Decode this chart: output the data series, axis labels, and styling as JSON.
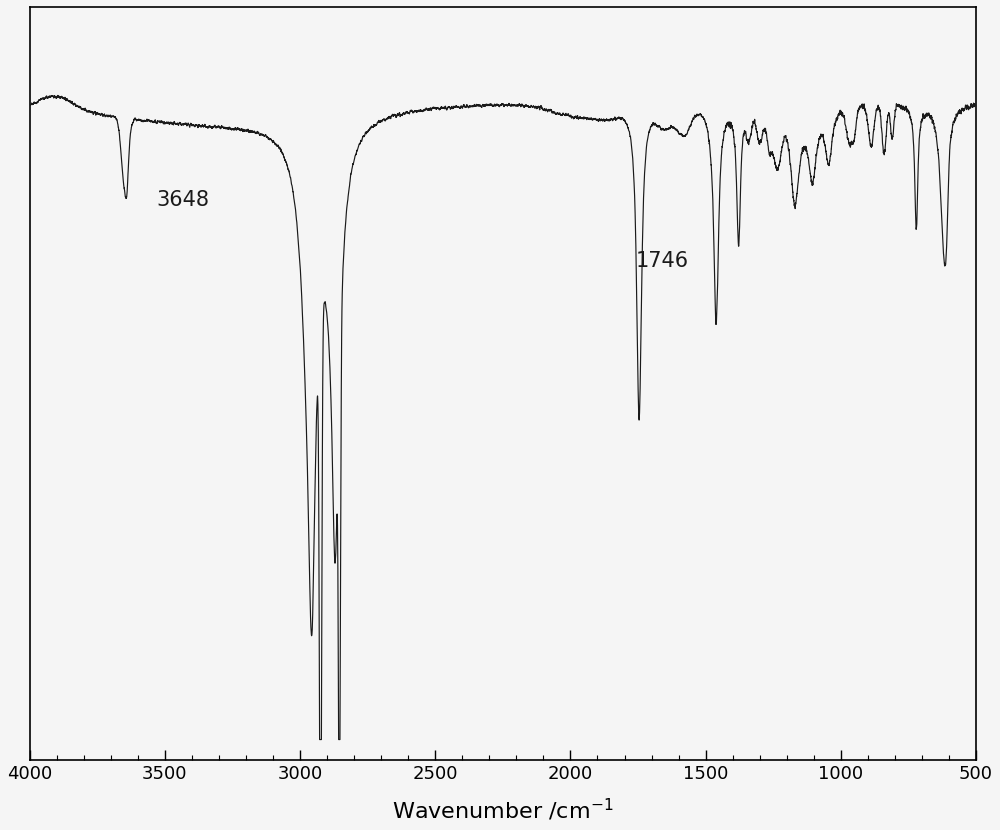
{
  "xmin": 500,
  "xmax": 4000,
  "ymin": -0.05,
  "ymax": 1.05,
  "line_color": "#1a1a1a",
  "bg_color": "#f5f5f5",
  "xlabel_fontsize": 16,
  "annotation_fontsize": 15,
  "tick_fontsize": 13,
  "annotation_3648_label": "3648",
  "annotation_1746_label": "1746"
}
